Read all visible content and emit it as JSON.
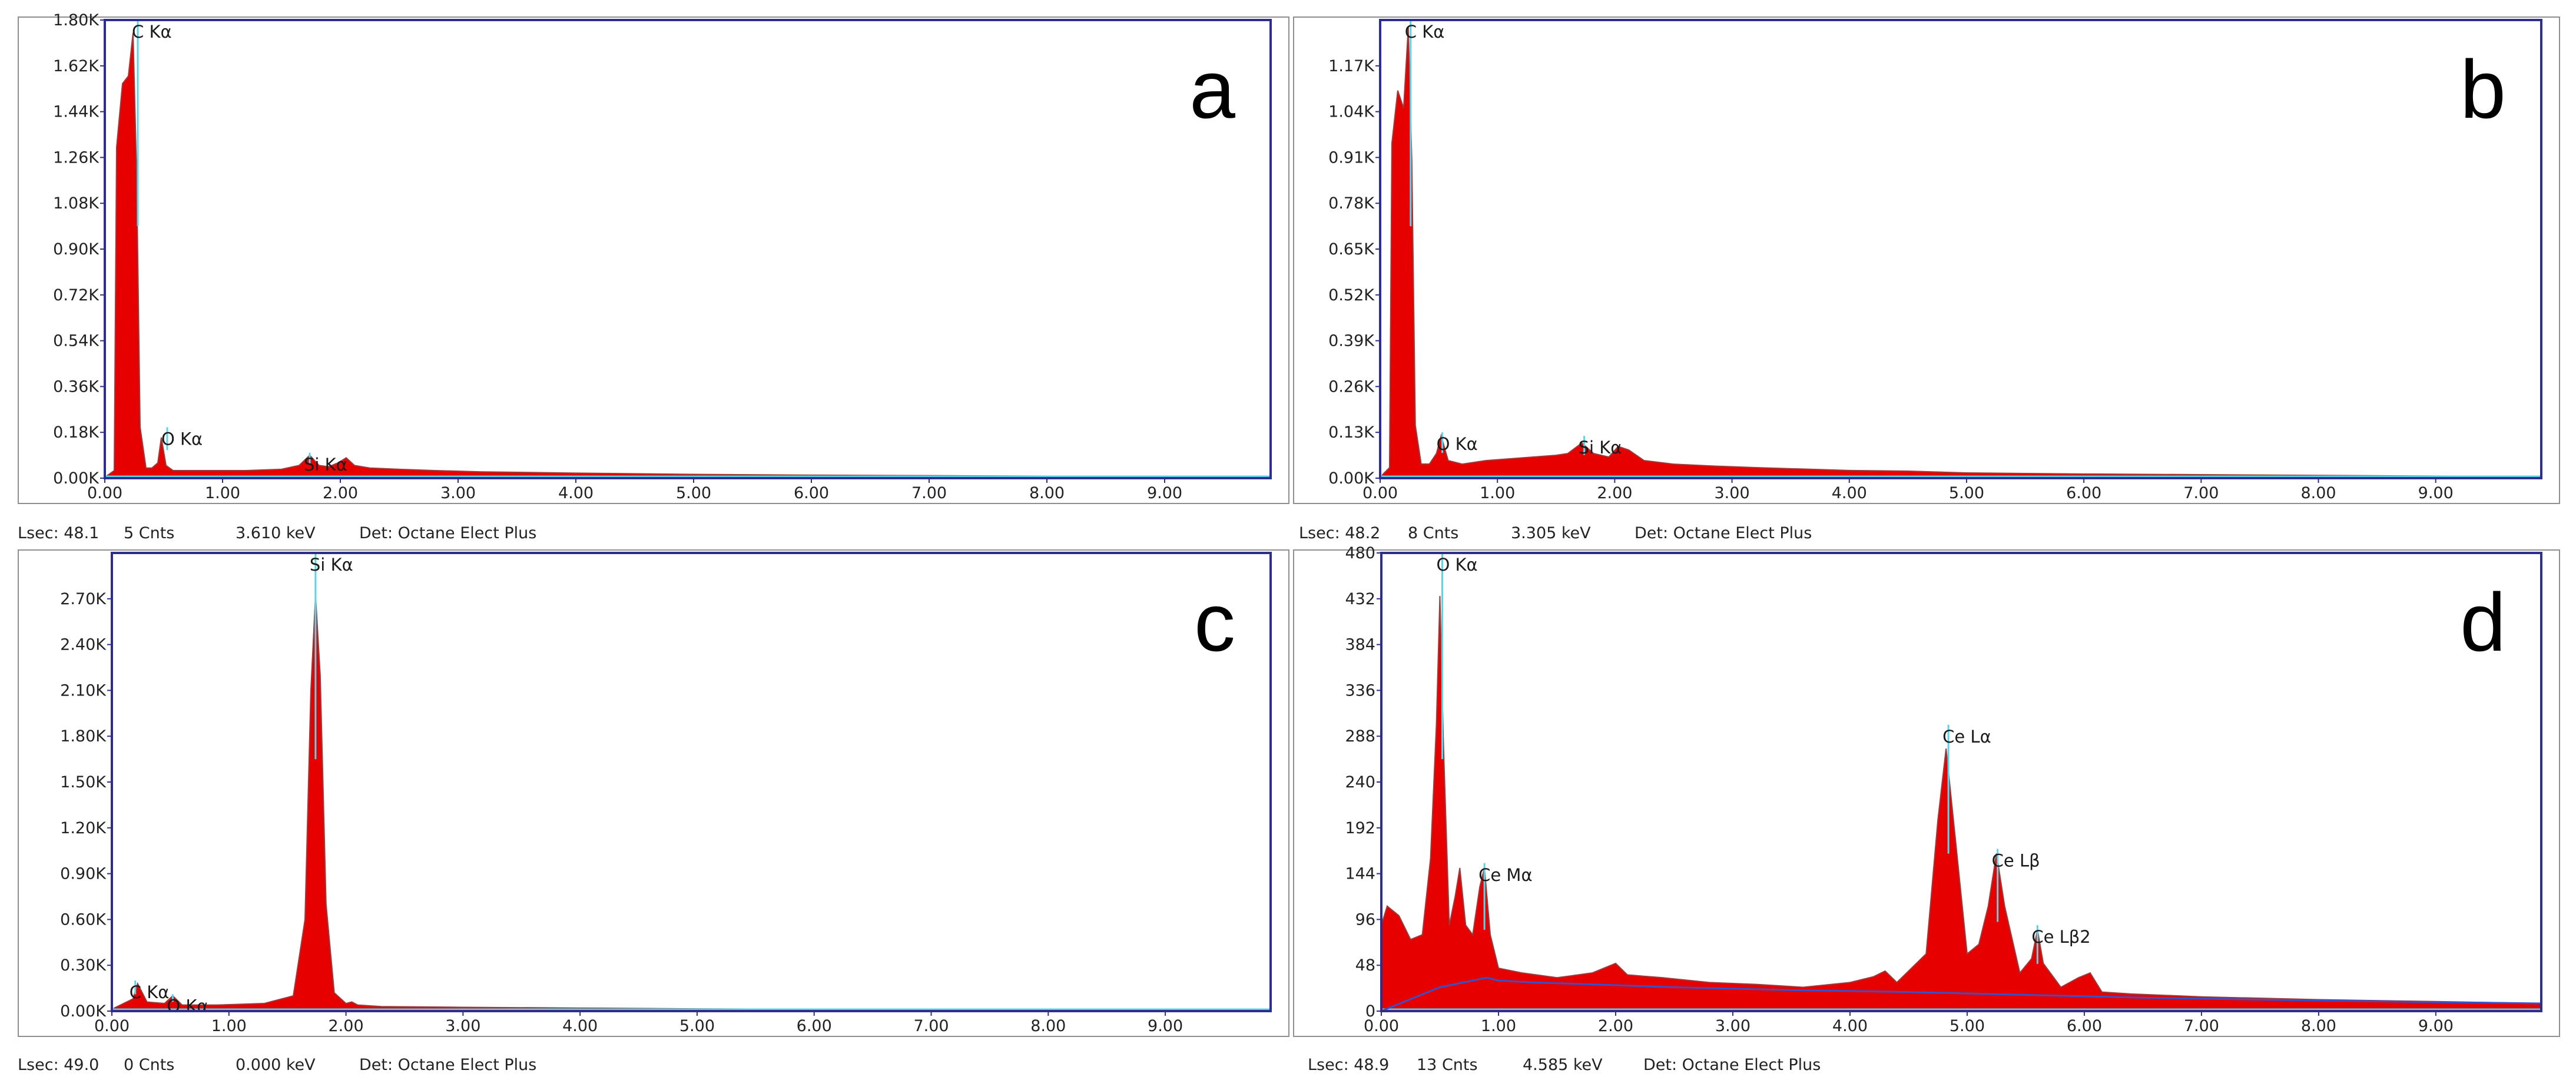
{
  "colors": {
    "plot_frame": "#2e2e8c",
    "outer_frame": "#8f8f8f",
    "spectrum_fill": "#e60000",
    "spectrum_edge": "#9b3b3b",
    "background_line": "#5fd3e6",
    "fit_line": "#3a50c8"
  },
  "chart_data": [
    {
      "type": "area",
      "panel_label": "a",
      "title": "",
      "xlabel": "",
      "ylabel": "",
      "xlim": [
        0,
        9.9
      ],
      "ylim": [
        0,
        1.8
      ],
      "x_ticks": [
        "0.00",
        "1.00",
        "2.00",
        "3.00",
        "4.00",
        "5.00",
        "6.00",
        "7.00",
        "8.00",
        "9.00"
      ],
      "y_ticks": [
        "0.00K",
        "0.18K",
        "0.36K",
        "0.54K",
        "0.72K",
        "0.90K",
        "1.08K",
        "1.26K",
        "1.44K",
        "1.62K",
        "1.80K"
      ],
      "spectrum": {
        "x": [
          0.02,
          0.08,
          0.1,
          0.15,
          0.2,
          0.24,
          0.27,
          0.3,
          0.35,
          0.4,
          0.45,
          0.48,
          0.52,
          0.58,
          0.7,
          0.9,
          1.2,
          1.5,
          1.65,
          1.74,
          1.82,
          1.9,
          1.98,
          2.05,
          2.12,
          2.25,
          2.5,
          2.8,
          3.2,
          4.0,
          5.0,
          6.0,
          7.0,
          8.0,
          8.35,
          8.4
        ],
        "y": [
          0.01,
          0.03,
          1.3,
          1.55,
          1.58,
          1.75,
          1.2,
          0.2,
          0.04,
          0.04,
          0.06,
          0.16,
          0.05,
          0.03,
          0.03,
          0.03,
          0.03,
          0.035,
          0.05,
          0.09,
          0.05,
          0.045,
          0.06,
          0.08,
          0.05,
          0.04,
          0.035,
          0.03,
          0.025,
          0.02,
          0.015,
          0.012,
          0.01,
          0.008,
          0.007,
          0.0
        ]
      },
      "peaks": [
        {
          "label": "C  Kα",
          "x": 0.28,
          "y": 1.8
        },
        {
          "label": "O  Kα",
          "x": 0.53,
          "y": 0.2
        },
        {
          "label": "Si Kα",
          "x": 1.74,
          "y": 0.1
        }
      ],
      "status": {
        "lsec": "Lsec: 48.1",
        "cnts": "5 Cnts",
        "energy": "3.610 keV",
        "det": "Det: Octane Elect Plus"
      }
    },
    {
      "type": "area",
      "panel_label": "b",
      "title": "",
      "xlabel": "",
      "ylabel": "",
      "xlim": [
        0,
        9.9
      ],
      "ylim": [
        0,
        1.3
      ],
      "x_ticks": [
        "0.00",
        "1.00",
        "2.00",
        "3.00",
        "4.00",
        "5.00",
        "6.00",
        "7.00",
        "8.00",
        "9.00"
      ],
      "y_ticks": [
        "0.00K",
        "0.13K",
        "0.26K",
        "0.39K",
        "0.52K",
        "0.65K",
        "0.78K",
        "0.91K",
        "1.04K",
        "1.17K"
      ],
      "spectrum": {
        "x": [
          0.02,
          0.08,
          0.1,
          0.15,
          0.2,
          0.24,
          0.27,
          0.3,
          0.35,
          0.42,
          0.48,
          0.52,
          0.58,
          0.7,
          0.9,
          1.1,
          1.3,
          1.5,
          1.6,
          1.72,
          1.82,
          1.95,
          2.03,
          2.12,
          2.25,
          2.5,
          2.8,
          3.2,
          4.0,
          4.5,
          5.0,
          6.0,
          7.0,
          8.0,
          9.0,
          9.9
        ],
        "y": [
          0.01,
          0.03,
          0.95,
          1.1,
          1.05,
          1.28,
          0.9,
          0.15,
          0.04,
          0.04,
          0.07,
          0.12,
          0.05,
          0.04,
          0.05,
          0.055,
          0.06,
          0.065,
          0.07,
          0.1,
          0.07,
          0.06,
          0.09,
          0.08,
          0.05,
          0.04,
          0.035,
          0.03,
          0.022,
          0.02,
          0.015,
          0.012,
          0.01,
          0.008,
          0.006,
          0.005
        ]
      },
      "peaks": [
        {
          "label": "C  Kα",
          "x": 0.26,
          "y": 1.3
        },
        {
          "label": "O  Kα",
          "x": 0.53,
          "y": 0.13
        },
        {
          "label": "Si Kα",
          "x": 1.74,
          "y": 0.12
        }
      ],
      "status": {
        "lsec": "Lsec: 48.2",
        "cnts": "8 Cnts",
        "energy": "3.305 keV",
        "det": "Det: Octane Elect Plus"
      }
    },
    {
      "type": "area",
      "panel_label": "c",
      "title": "",
      "xlabel": "",
      "ylabel": "",
      "xlim": [
        0,
        9.9
      ],
      "ylim": [
        0,
        3.0
      ],
      "x_ticks": [
        "0.00",
        "1.00",
        "2.00",
        "3.00",
        "4.00",
        "5.00",
        "6.00",
        "7.00",
        "8.00",
        "9.00"
      ],
      "y_ticks": [
        "0.00K",
        "0.30K",
        "0.60K",
        "0.90K",
        "1.20K",
        "1.50K",
        "1.80K",
        "2.10K",
        "2.40K",
        "2.70K"
      ],
      "spectrum": {
        "x": [
          0.02,
          0.1,
          0.18,
          0.22,
          0.3,
          0.45,
          0.52,
          0.6,
          0.9,
          1.3,
          1.55,
          1.65,
          1.7,
          1.74,
          1.78,
          1.83,
          1.9,
          2.0,
          2.05,
          2.1,
          2.3,
          3.0,
          4.0,
          5.0,
          6.0,
          7.0,
          8.0,
          9.0,
          9.9
        ],
        "y": [
          0.02,
          0.05,
          0.08,
          0.18,
          0.06,
          0.05,
          0.1,
          0.04,
          0.04,
          0.05,
          0.1,
          0.6,
          2.1,
          2.72,
          2.2,
          0.7,
          0.12,
          0.05,
          0.06,
          0.04,
          0.03,
          0.025,
          0.02,
          0.015,
          0.012,
          0.01,
          0.01,
          0.008,
          0.006
        ]
      },
      "peaks": [
        {
          "label": "C Kα",
          "x": 0.2,
          "y": 0.2
        },
        {
          "label": "O  Kα",
          "x": 0.52,
          "y": 0.11
        },
        {
          "label": "Si Kα",
          "x": 1.74,
          "y": 3.0
        }
      ],
      "status": {
        "lsec": "Lsec: 49.0",
        "cnts": "0 Cnts",
        "energy": "0.000 keV",
        "det": "Det: Octane Elect Plus"
      }
    },
    {
      "type": "area",
      "panel_label": "d",
      "title": "",
      "xlabel": "",
      "ylabel": "",
      "xlim": [
        0,
        9.9
      ],
      "ylim": [
        0,
        480
      ],
      "x_ticks": [
        "0.00",
        "1.00",
        "2.00",
        "3.00",
        "4.00",
        "5.00",
        "6.00",
        "7.00",
        "8.00",
        "9.00"
      ],
      "y_ticks": [
        "0",
        "48",
        "96",
        "144",
        "192",
        "240",
        "288",
        "336",
        "384",
        "432",
        "480"
      ],
      "spectrum": {
        "x": [
          0.0,
          0.05,
          0.15,
          0.25,
          0.35,
          0.42,
          0.47,
          0.5,
          0.53,
          0.58,
          0.63,
          0.67,
          0.72,
          0.78,
          0.84,
          0.88,
          0.93,
          1.0,
          1.2,
          1.5,
          1.8,
          2.0,
          2.1,
          2.4,
          2.8,
          3.2,
          3.6,
          4.0,
          4.2,
          4.3,
          4.4,
          4.65,
          4.75,
          4.82,
          4.9,
          5.0,
          5.1,
          5.18,
          5.25,
          5.32,
          5.45,
          5.55,
          5.6,
          5.65,
          5.8,
          5.95,
          6.05,
          6.15,
          6.4,
          7.0,
          8.0,
          9.0,
          9.9
        ],
        "y": [
          90,
          110,
          100,
          75,
          80,
          160,
          300,
          435,
          280,
          90,
          120,
          150,
          90,
          80,
          130,
          150,
          80,
          45,
          40,
          35,
          40,
          50,
          38,
          35,
          30,
          28,
          25,
          30,
          36,
          42,
          30,
          60,
          200,
          275,
          180,
          60,
          70,
          110,
          165,
          110,
          40,
          55,
          85,
          50,
          25,
          35,
          40,
          20,
          18,
          15,
          12,
          10,
          8
        ]
      },
      "background": {
        "x": [
          0.0,
          0.1,
          0.3,
          0.5,
          0.7,
          0.9,
          1.0,
          1.3,
          1.8,
          2.5,
          3.5,
          4.5,
          5.5,
          6.5,
          8.0,
          9.9
        ],
        "y": [
          0,
          5,
          15,
          25,
          30,
          35,
          32,
          30,
          28,
          25,
          22,
          20,
          17,
          14,
          11,
          8
        ]
      },
      "peaks": [
        {
          "label": "O  Kα",
          "x": 0.52,
          "y": 480
        },
        {
          "label": "Ce Mα",
          "x": 0.88,
          "y": 155
        },
        {
          "label": "Ce Lα",
          "x": 4.84,
          "y": 300
        },
        {
          "label": "Ce Lβ",
          "x": 5.26,
          "y": 170
        },
        {
          "label": "Ce Lβ2",
          "x": 5.6,
          "y": 90
        }
      ],
      "status": {
        "lsec": "Lsec: 48.9",
        "cnts": "13 Cnts",
        "energy": "4.585 keV",
        "det": "Det: Octane Elect Plus"
      }
    }
  ]
}
